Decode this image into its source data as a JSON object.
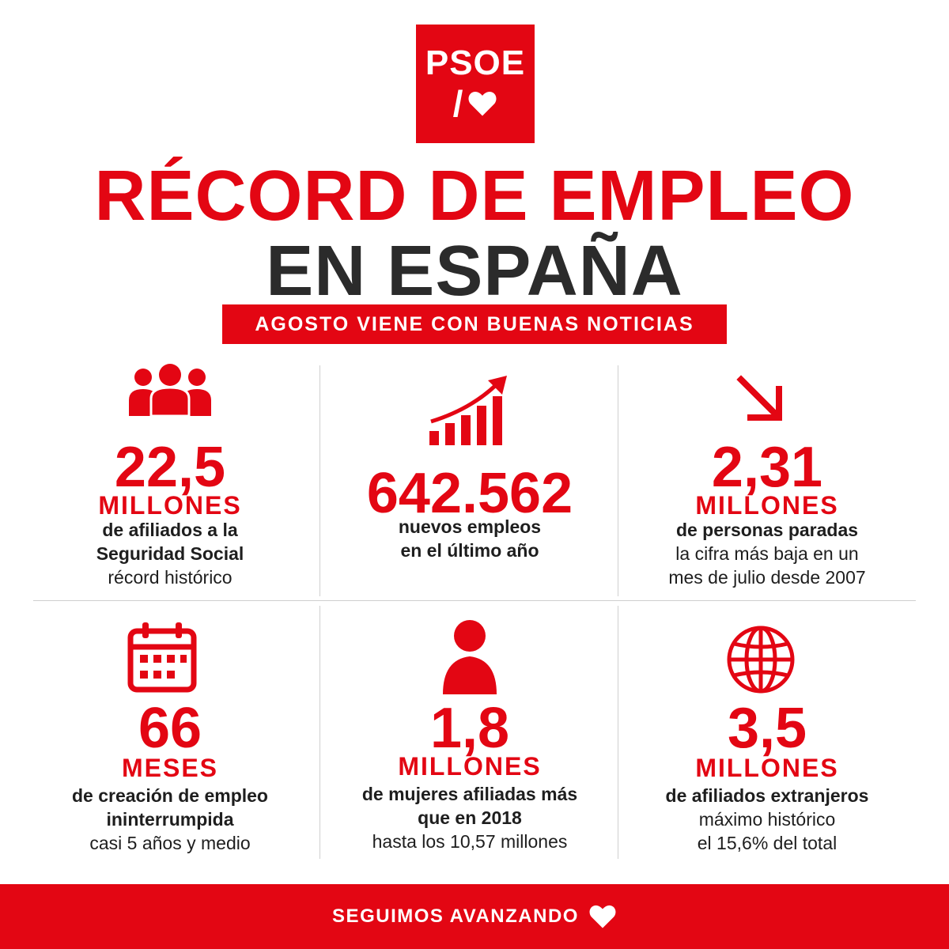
{
  "logo": {
    "text": "PSOE",
    "mark": "/"
  },
  "title": {
    "line1": "RÉCORD DE EMPLEO",
    "line2": "EN ESPAÑA"
  },
  "subtitle": "AGOSTO VIENE CON BUENAS NOTICIAS",
  "stats": [
    {
      "icon": "people-group-icon",
      "value": "22,5",
      "unit": "MILLONES",
      "bold1": "de afiliados a la",
      "bold2": "Seguridad Social",
      "normal1": "récord histórico",
      "normal2": ""
    },
    {
      "icon": "growth-chart-icon",
      "value": "642.562",
      "unit": "",
      "bold1": "nuevos empleos",
      "bold2": "en el último año",
      "normal1": "",
      "normal2": ""
    },
    {
      "icon": "arrow-down-right-icon",
      "value": "2,31",
      "unit": "MILLONES",
      "bold1": "de personas paradas",
      "bold2": "",
      "normal1": "la cifra más baja en un",
      "normal2": "mes de julio desde 2007"
    },
    {
      "icon": "calendar-icon",
      "value": "66",
      "unit": "MESES",
      "bold1": "de creación de empleo",
      "bold2": "ininterrumpida",
      "normal1": "casi 5 años y medio",
      "normal2": ""
    },
    {
      "icon": "woman-icon",
      "value": "1,8",
      "unit": "MILLONES",
      "bold1": "de mujeres afiliadas más",
      "bold2": "que en 2018",
      "normal1": "hasta los 10,57 millones",
      "normal2": ""
    },
    {
      "icon": "globe-icon",
      "value": "3,5",
      "unit": "MILLONES",
      "bold1": "de afiliados extranjeros",
      "bold2": "",
      "normal1": "máximo histórico",
      "normal2": "el 15,6% del total"
    }
  ],
  "footer": {
    "text": "SEGUIMOS AVANZANDO",
    "icon": "heart-icon"
  },
  "colors": {
    "brand_red": "#e30613",
    "dark": "#2b2b2b"
  }
}
